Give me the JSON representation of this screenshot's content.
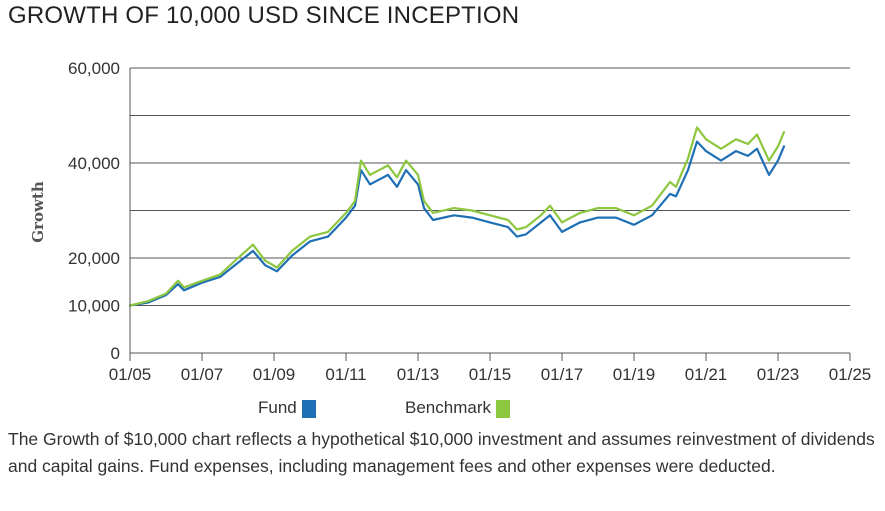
{
  "title": "GROWTH OF 10,000 USD SINCE INCEPTION",
  "footnote": "The Growth of $10,000 chart reflects a hypothetical $10,000 investment and assumes reinvestment of dividends and capital gains. Fund expenses, including management fees and other expenses were deducted.",
  "colors": {
    "fund": "#1f6fb5",
    "benchmark": "#8dc63f",
    "grid": "#555555"
  },
  "chart_data": {
    "type": "line",
    "title": "GROWTH OF 10,000 USD SINCE INCEPTION",
    "xlabel": "",
    "ylabel": "Growth",
    "x_ticks": [
      "01/05",
      "01/07",
      "01/09",
      "01/11",
      "01/13",
      "01/15",
      "01/17",
      "01/19",
      "01/21",
      "01/23",
      "01/25"
    ],
    "x_range": [
      "2005-01",
      "2025-01"
    ],
    "y_ticks": [
      {
        "value": 0,
        "label": "0"
      },
      {
        "value": 10000,
        "label": "10,000"
      },
      {
        "value": 20000,
        "label": "20,000"
      },
      {
        "value": 40000,
        "label": "40,000"
      },
      {
        "value": 60000,
        "label": "60,000"
      }
    ],
    "ylim": [
      0,
      60000
    ],
    "grid": true,
    "legend_position": "bottom",
    "series": [
      {
        "name": "Fund",
        "color": "#1f6fb5",
        "points": [
          [
            "2005-01",
            10000
          ],
          [
            "2005-07",
            10600
          ],
          [
            "2006-01",
            12200
          ],
          [
            "2006-05",
            14500
          ],
          [
            "2006-07",
            13200
          ],
          [
            "2007-01",
            14800
          ],
          [
            "2007-07",
            16000
          ],
          [
            "2008-01",
            19000
          ],
          [
            "2008-06",
            21500
          ],
          [
            "2008-10",
            18500
          ],
          [
            "2009-02",
            17200
          ],
          [
            "2009-07",
            20500
          ],
          [
            "2010-01",
            23500
          ],
          [
            "2010-07",
            24500
          ],
          [
            "2011-01",
            28500
          ],
          [
            "2011-04",
            31000
          ],
          [
            "2011-06",
            38500
          ],
          [
            "2011-09",
            35500
          ],
          [
            "2012-03",
            37500
          ],
          [
            "2012-06",
            35000
          ],
          [
            "2012-09",
            38500
          ],
          [
            "2013-01",
            35500
          ],
          [
            "2013-03",
            30500
          ],
          [
            "2013-06",
            28000
          ],
          [
            "2014-01",
            29000
          ],
          [
            "2014-07",
            28500
          ],
          [
            "2015-01",
            27500
          ],
          [
            "2015-07",
            26500
          ],
          [
            "2015-10",
            24500
          ],
          [
            "2016-01",
            25000
          ],
          [
            "2016-06",
            27500
          ],
          [
            "2016-09",
            29000
          ],
          [
            "2017-01",
            25500
          ],
          [
            "2017-07",
            27500
          ],
          [
            "2018-01",
            28500
          ],
          [
            "2018-07",
            28500
          ],
          [
            "2019-01",
            27000
          ],
          [
            "2019-07",
            29000
          ],
          [
            "2020-01",
            33500
          ],
          [
            "2020-03",
            33000
          ],
          [
            "2020-07",
            38500
          ],
          [
            "2020-10",
            44500
          ],
          [
            "2021-01",
            42500
          ],
          [
            "2021-06",
            40500
          ],
          [
            "2021-11",
            42500
          ],
          [
            "2022-03",
            41500
          ],
          [
            "2022-06",
            43000
          ],
          [
            "2022-10",
            37500
          ],
          [
            "2023-01",
            40500
          ],
          [
            "2023-03",
            43500
          ]
        ]
      },
      {
        "name": "Benchmark",
        "color": "#8dc63f",
        "points": [
          [
            "2005-01",
            10000
          ],
          [
            "2005-07",
            10900
          ],
          [
            "2006-01",
            12500
          ],
          [
            "2006-05",
            15200
          ],
          [
            "2006-07",
            13800
          ],
          [
            "2007-01",
            15200
          ],
          [
            "2007-07",
            16500
          ],
          [
            "2008-01",
            20000
          ],
          [
            "2008-06",
            22800
          ],
          [
            "2008-10",
            19500
          ],
          [
            "2009-02",
            18000
          ],
          [
            "2009-07",
            21500
          ],
          [
            "2010-01",
            24500
          ],
          [
            "2010-07",
            25500
          ],
          [
            "2011-01",
            29500
          ],
          [
            "2011-04",
            32000
          ],
          [
            "2011-06",
            40500
          ],
          [
            "2011-09",
            37500
          ],
          [
            "2012-03",
            39500
          ],
          [
            "2012-06",
            37000
          ],
          [
            "2012-09",
            40500
          ],
          [
            "2013-01",
            37500
          ],
          [
            "2013-03",
            32000
          ],
          [
            "2013-06",
            29500
          ],
          [
            "2014-01",
            30500
          ],
          [
            "2014-07",
            30000
          ],
          [
            "2015-01",
            29000
          ],
          [
            "2015-07",
            28000
          ],
          [
            "2015-10",
            26000
          ],
          [
            "2016-01",
            26500
          ],
          [
            "2016-06",
            29000
          ],
          [
            "2016-09",
            31000
          ],
          [
            "2017-01",
            27500
          ],
          [
            "2017-07",
            29500
          ],
          [
            "2018-01",
            30500
          ],
          [
            "2018-07",
            30500
          ],
          [
            "2019-01",
            29000
          ],
          [
            "2019-07",
            31000
          ],
          [
            "2020-01",
            36000
          ],
          [
            "2020-03",
            35000
          ],
          [
            "2020-07",
            41000
          ],
          [
            "2020-10",
            47500
          ],
          [
            "2021-01",
            45000
          ],
          [
            "2021-06",
            43000
          ],
          [
            "2021-11",
            45000
          ],
          [
            "2022-03",
            44000
          ],
          [
            "2022-06",
            46000
          ],
          [
            "2022-10",
            40500
          ],
          [
            "2023-01",
            43500
          ],
          [
            "2023-03",
            46500
          ]
        ]
      }
    ]
  },
  "legend": {
    "fund_label": "Fund",
    "benchmark_label": "Benchmark"
  }
}
